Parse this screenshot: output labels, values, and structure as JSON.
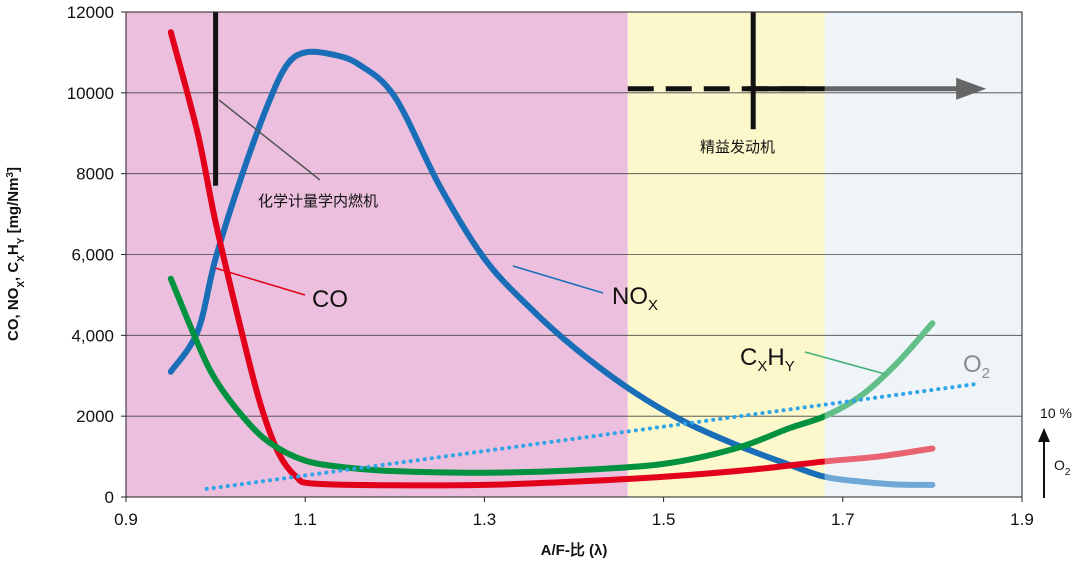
{
  "chart_data": {
    "type": "line",
    "xlabel": "A/F-比 (λ)",
    "ylabel": "CO, NOX, CXHY [mg/Nm³]",
    "xlim": [
      0.9,
      1.9
    ],
    "ylim": [
      0,
      12000
    ],
    "x_ticks": [
      "0.9",
      "1.1",
      "1.3",
      "1.5",
      "1.7",
      "1.9"
    ],
    "x_tick_values": [
      0.9,
      1.1,
      1.3,
      1.5,
      1.7,
      1.9
    ],
    "y_ticks": [
      "0",
      "2000",
      "4,000",
      "6,000",
      "8000",
      "10000",
      "12000"
    ],
    "y_tick_values": [
      0,
      2000,
      4000,
      6000,
      8000,
      10000,
      12000
    ],
    "regions": [
      {
        "name": "rich",
        "x_from": 0.9,
        "x_to": 1.46,
        "color": "#ebbfdd"
      },
      {
        "name": "lean",
        "x_from": 1.46,
        "x_to": 1.68,
        "color": "#fdf8cc"
      },
      {
        "name": "beyond",
        "x_from": 1.68,
        "x_to": 1.9,
        "color": "#eff4f8"
      }
    ],
    "series": [
      {
        "name": "NO",
        "sub": "X",
        "color": "#1a6eb8",
        "fade_color": "#6fa8d6",
        "points": [
          [
            0.95,
            3100
          ],
          [
            0.98,
            4100
          ],
          [
            1.0,
            5900
          ],
          [
            1.03,
            8000
          ],
          [
            1.06,
            9800
          ],
          [
            1.08,
            10700
          ],
          [
            1.1,
            11000
          ],
          [
            1.13,
            10950
          ],
          [
            1.16,
            10700
          ],
          [
            1.2,
            9900
          ],
          [
            1.25,
            7700
          ],
          [
            1.3,
            5900
          ],
          [
            1.35,
            4700
          ],
          [
            1.4,
            3700
          ],
          [
            1.46,
            2700
          ],
          [
            1.52,
            1900
          ],
          [
            1.58,
            1300
          ],
          [
            1.64,
            800
          ],
          [
            1.68,
            500
          ],
          [
            1.72,
            380
          ],
          [
            1.76,
            310
          ],
          [
            1.8,
            300
          ]
        ]
      },
      {
        "name": "CO",
        "color": "#e3001b",
        "fade_color": "#e86471",
        "points": [
          [
            0.95,
            11500
          ],
          [
            0.98,
            9000
          ],
          [
            1.0,
            6800
          ],
          [
            1.03,
            4000
          ],
          [
            1.05,
            2300
          ],
          [
            1.07,
            1100
          ],
          [
            1.09,
            500
          ],
          [
            1.11,
            330
          ],
          [
            1.2,
            290
          ],
          [
            1.3,
            300
          ],
          [
            1.4,
            380
          ],
          [
            1.5,
            500
          ],
          [
            1.6,
            680
          ],
          [
            1.68,
            880
          ],
          [
            1.74,
            1000
          ],
          [
            1.8,
            1200
          ]
        ]
      },
      {
        "name": "C",
        "sub": "X",
        "name2": "H",
        "sub2": "Y",
        "color": "#00923f",
        "fade_color": "#63bf8a",
        "points": [
          [
            0.95,
            5400
          ],
          [
            0.98,
            3800
          ],
          [
            1.0,
            2900
          ],
          [
            1.03,
            2000
          ],
          [
            1.06,
            1350
          ],
          [
            1.1,
            900
          ],
          [
            1.15,
            720
          ],
          [
            1.2,
            640
          ],
          [
            1.3,
            600
          ],
          [
            1.4,
            660
          ],
          [
            1.5,
            820
          ],
          [
            1.58,
            1200
          ],
          [
            1.64,
            1700
          ],
          [
            1.68,
            2000
          ],
          [
            1.72,
            2500
          ],
          [
            1.76,
            3300
          ],
          [
            1.8,
            4300
          ]
        ]
      },
      {
        "name": "O",
        "sub": "2",
        "color": "#2fa4e7",
        "style": "dotted",
        "points": [
          [
            0.99,
            200
          ],
          [
            1.85,
            2800
          ]
        ]
      }
    ],
    "annotations": {
      "stoich_label": "化学计量学内燃机",
      "lean_label": "精益发动机",
      "o2_percent": "10 %",
      "o2_axis_main": "O",
      "o2_axis_sub": "2",
      "stoich_x": 1.0,
      "lean_marker_x": 1.6,
      "lean_arrow_start_x": 1.46,
      "lean_arrow_end_x": 1.86,
      "lean_arrow_y": 10100
    }
  }
}
